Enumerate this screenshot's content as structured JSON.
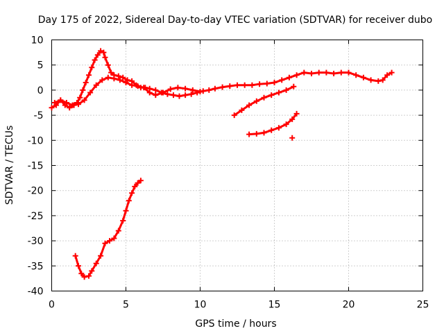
{
  "chart_data": {
    "type": "scatter",
    "title": "Day 175 of 2022, Sidereal Day-to-day VTEC variation (SDTVAR) for receiver dubo",
    "xlabel": "GPS time / hours",
    "ylabel": "SDTVAR / TECUs",
    "xlim": [
      0,
      25
    ],
    "ylim": [
      -40,
      10
    ],
    "xticks": [
      0,
      5,
      10,
      15,
      20,
      25
    ],
    "yticks": [
      10,
      5,
      0,
      -5,
      -10,
      -15,
      -20,
      -25,
      -30,
      -35,
      -40
    ],
    "grid": true,
    "marker": "plus",
    "color": "#ff0000",
    "series": [
      {
        "name": "main-trace",
        "x": [
          0.0,
          0.3,
          0.6,
          0.9,
          1.2,
          1.5,
          1.7,
          1.9,
          2.1,
          2.3,
          2.5,
          2.7,
          2.9,
          3.1,
          3.3,
          3.5,
          3.6,
          3.8,
          4.0,
          4.2,
          4.5,
          4.8,
          5.1,
          5.4,
          5.7,
          6.0,
          6.3,
          6.6,
          7.0,
          7.4,
          7.8,
          8.2,
          8.6,
          9.0,
          9.4,
          9.8,
          10.2,
          10.6,
          11.0,
          11.5,
          12.0,
          12.5,
          13.0,
          13.5,
          14.0,
          14.5,
          15.0,
          15.5,
          16.0,
          16.5,
          17.0,
          17.5,
          18.0,
          18.5,
          19.0,
          19.5,
          20.0,
          20.5,
          21.0,
          21.5,
          22.0,
          22.3,
          22.6,
          22.9
        ],
        "y": [
          -3.5,
          -3.0,
          -2.0,
          -3.0,
          -3.5,
          -3.0,
          -2.5,
          -1.5,
          0.0,
          1.5,
          3.0,
          4.5,
          6.0,
          7.0,
          7.8,
          7.5,
          6.5,
          5.0,
          3.5,
          3.0,
          2.8,
          2.5,
          2.0,
          1.8,
          1.0,
          0.5,
          0.5,
          0.3,
          0.0,
          -0.5,
          -0.8,
          -1.0,
          -1.2,
          -1.0,
          -0.8,
          -0.5,
          -0.2,
          0.0,
          0.3,
          0.6,
          0.8,
          1.0,
          1.0,
          1.0,
          1.2,
          1.3,
          1.5,
          2.0,
          2.5,
          3.0,
          3.5,
          3.3,
          3.5,
          3.5,
          3.3,
          3.5,
          3.5,
          3.0,
          2.5,
          2.0,
          1.8,
          2.0,
          3.0,
          3.5
        ]
      },
      {
        "name": "upper-loop",
        "x": [
          0.2,
          0.6,
          1.0,
          1.4,
          1.8,
          2.2,
          2.6,
          3.0,
          3.4,
          3.8,
          4.2,
          4.6,
          5.0,
          5.4,
          5.8,
          6.2,
          6.6,
          7.0,
          7.5,
          8.0,
          8.5,
          9.0,
          9.5,
          10.0
        ],
        "y": [
          -2.5,
          -2.0,
          -2.5,
          -3.0,
          -2.8,
          -2.0,
          -0.5,
          1.0,
          2.0,
          2.5,
          2.3,
          2.0,
          1.5,
          1.0,
          0.8,
          0.5,
          -0.5,
          -1.0,
          -0.5,
          0.2,
          0.5,
          0.3,
          0.0,
          -0.3
        ]
      },
      {
        "name": "evening-rise",
        "x": [
          12.3,
          12.8,
          13.3,
          13.8,
          14.3,
          14.8,
          15.3,
          15.8,
          16.3
        ],
        "y": [
          -5.0,
          -4.0,
          -3.0,
          -2.2,
          -1.5,
          -1.0,
          -0.5,
          0.0,
          0.7
        ]
      },
      {
        "name": "negative-segment",
        "x": [
          13.3,
          13.8,
          14.3,
          14.8,
          15.3,
          15.8,
          16.2,
          16.5
        ],
        "y": [
          -8.8,
          -8.7,
          -8.5,
          -8.0,
          -7.5,
          -6.8,
          -5.8,
          -4.7
        ]
      },
      {
        "name": "isolated-point",
        "x": [
          16.2
        ],
        "y": [
          -9.5
        ]
      },
      {
        "name": "deep-dip",
        "x": [
          1.6,
          1.8,
          2.0,
          2.2,
          2.5,
          2.7,
          3.0,
          3.3,
          3.6,
          3.9,
          4.2,
          4.5,
          4.8,
          5.0,
          5.2,
          5.4,
          5.6,
          5.8,
          6.0
        ],
        "y": [
          -33.0,
          -35.0,
          -36.5,
          -37.2,
          -37.0,
          -36.0,
          -34.5,
          -33.0,
          -30.5,
          -30.0,
          -29.5,
          -28.0,
          -26.0,
          -24.0,
          -22.0,
          -20.5,
          -19.2,
          -18.5,
          -18.0
        ]
      }
    ]
  }
}
